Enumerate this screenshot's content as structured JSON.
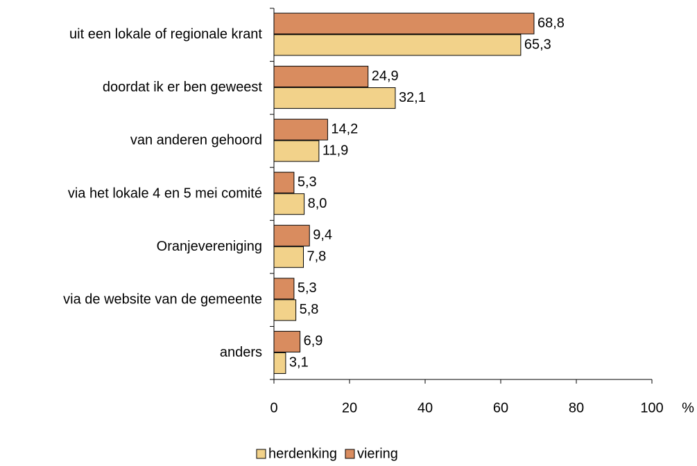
{
  "chart_data": {
    "type": "hbar",
    "categories": [
      "uit een lokale of regionale krant",
      "doordat ik er ben geweest",
      "van anderen gehoord",
      "via het lokale 4 en 5 mei comité",
      "Oranjevereniging",
      "via de website van de gemeente",
      "anders"
    ],
    "series": [
      {
        "name": "herdenking",
        "color": "#f2d28a",
        "values": [
          65.3,
          32.1,
          11.9,
          8.0,
          7.8,
          5.8,
          3.1
        ],
        "value_labels": [
          "65,3",
          "32,1",
          "11,9",
          "8,0",
          "7,8",
          "5,8",
          "3,1"
        ]
      },
      {
        "name": "viering",
        "color": "#d98c5f",
        "values": [
          68.8,
          24.9,
          14.2,
          5.3,
          9.4,
          5.3,
          6.9
        ],
        "value_labels": [
          "68,8",
          "24,9",
          "14,2",
          "5,3",
          "9,4",
          "5,3",
          "6,9"
        ]
      }
    ],
    "xlabel": "%",
    "xlim": [
      0,
      100
    ],
    "xticks": [
      0,
      20,
      40,
      60,
      80,
      100
    ],
    "legend": "bottom"
  }
}
